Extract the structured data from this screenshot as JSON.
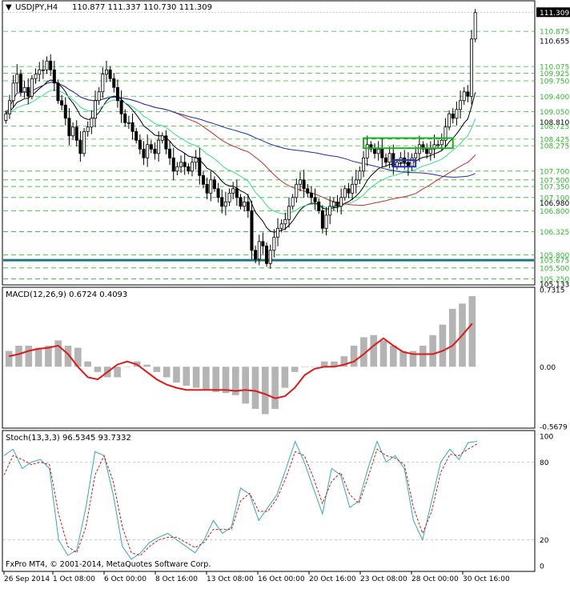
{
  "header": {
    "symbol": "USDJPY,H4",
    "ohlc": "110.877 111.337 110.730 111.309"
  },
  "copyright": "FxPro MT4, © 2001-2014, MetaQuotes Software Corp.",
  "colors": {
    "bull": "#000000",
    "ma_fast": "#000000",
    "ma_green": "#3cdc8c",
    "ma_red": "#c03030",
    "ma_blue": "#2030a0",
    "level_dashed": "#2db82d",
    "support": "#1a7a80",
    "resistance_box": "#22b022",
    "small_box": "#2030c0",
    "macd_hist": "#b4b4b4",
    "macd_signal": "#e01818",
    "stoch_main": "#3aa8b0",
    "stoch_signal": "#d01818"
  },
  "chart_data": [
    {
      "type": "candlestick",
      "name": "USDJPY,H4",
      "ylim": [
        105.133,
        111.55
      ],
      "x_labels": [
        "26 Sep 2014",
        "1 Oct 08:00",
        "6 Oct 00:00",
        "8 Oct 16:00",
        "13 Oct 08:00",
        "16 Oct 00:00",
        "20 Oct 16:00",
        "23 Oct 08:00",
        "28 Oct 00:00",
        "30 Oct 16:00"
      ],
      "price_axis_labels": [
        "111.309",
        "110.875",
        "110.655",
        "110.075",
        "109.925",
        "109.750",
        "109.400",
        "109.050",
        "108.810",
        "108.725",
        "108.425",
        "108.275",
        "107.700",
        "107.500",
        "107.350",
        "107.100",
        "106.980",
        "106.800",
        "106.325",
        "105.800",
        "105.675",
        "105.500",
        "105.250",
        "105.133"
      ],
      "dashed_levels": [
        110.875,
        110.075,
        109.925,
        109.75,
        109.4,
        109.05,
        108.725,
        108.425,
        108.275,
        107.7,
        107.5,
        107.35,
        107.1,
        106.8,
        106.325,
        105.8,
        105.5,
        105.25
      ],
      "support_level": 105.675,
      "current_price": 111.309,
      "close": [
        109.0,
        109.3,
        109.7,
        109.9,
        109.5,
        109.6,
        109.4,
        109.8,
        109.9,
        110.0,
        110.0,
        110.2,
        110.0,
        109.7,
        109.3,
        109.2,
        108.9,
        108.5,
        108.7,
        108.4,
        108.1,
        108.6,
        108.7,
        108.9,
        109.3,
        109.5,
        109.9,
        110.0,
        109.8,
        109.6,
        109.3,
        109.0,
        108.8,
        108.8,
        108.6,
        108.4,
        108.2,
        108.0,
        108.3,
        108.2,
        108.1,
        108.4,
        108.5,
        108.2,
        108.0,
        107.7,
        107.8,
        107.9,
        107.8,
        107.7,
        107.9,
        108.0,
        107.6,
        107.4,
        107.2,
        107.5,
        107.3,
        107.1,
        106.9,
        107.0,
        107.2,
        107.3,
        107.1,
        106.9,
        107.0,
        106.8,
        105.9,
        105.7,
        106.1,
        106.0,
        105.6,
        105.9,
        106.2,
        106.4,
        106.5,
        106.6,
        106.9,
        107.1,
        107.4,
        107.5,
        107.3,
        107.2,
        107.1,
        107.0,
        106.8,
        106.4,
        106.7,
        106.9,
        107.0,
        106.9,
        107.1,
        107.3,
        107.2,
        107.4,
        107.5,
        107.7,
        108.0,
        108.3,
        108.2,
        108.1,
        108.2,
        108.0,
        107.9,
        108.1,
        107.8,
        107.9,
        108.0,
        107.9,
        107.8,
        108.0,
        108.1,
        108.3,
        108.2,
        108.1,
        108.2,
        108.3,
        108.3,
        108.4,
        108.7,
        109.0,
        108.9,
        109.1,
        109.3,
        109.5,
        109.4,
        110.7,
        111.3
      ]
    },
    {
      "type": "bar",
      "name": "MACD(12,26,9)",
      "header": "MACD(12,26,9) 0.6724 0.4093",
      "axis_labels": [
        "0.7315",
        "0.00",
        "-0.5679"
      ],
      "ylim": [
        -0.5679,
        0.7315
      ],
      "main": [
        0.15,
        0.2,
        0.2,
        0.18,
        0.2,
        0.25,
        0.2,
        0.18,
        0.05,
        -0.05,
        -0.1,
        -0.1,
        0.0,
        0.05,
        0.02,
        -0.05,
        -0.1,
        -0.15,
        -0.18,
        -0.2,
        -0.22,
        -0.24,
        -0.25,
        -0.27,
        -0.35,
        -0.4,
        -0.45,
        -0.4,
        -0.2,
        -0.05,
        0.0,
        0.0,
        0.05,
        0.05,
        0.1,
        0.2,
        0.28,
        0.3,
        0.25,
        0.2,
        0.15,
        0.15,
        0.2,
        0.3,
        0.4,
        0.55,
        0.6,
        0.67
      ],
      "signal": [
        0.1,
        0.12,
        0.15,
        0.17,
        0.18,
        0.2,
        0.12,
        0.0,
        -0.1,
        -0.12,
        -0.05,
        0.02,
        0.05,
        0.02,
        -0.05,
        -0.12,
        -0.17,
        -0.2,
        -0.22,
        -0.22,
        -0.22,
        -0.22,
        -0.22,
        -0.23,
        -0.22,
        -0.23,
        -0.26,
        -0.3,
        -0.28,
        -0.2,
        -0.08,
        -0.02,
        0.0,
        0.0,
        0.02,
        0.05,
        0.12,
        0.2,
        0.27,
        0.2,
        0.14,
        0.12,
        0.12,
        0.12,
        0.15,
        0.2,
        0.3,
        0.41
      ]
    },
    {
      "type": "line",
      "name": "Stoch(13,3,3)",
      "header": "Stoch(13,3,3) 96.5345 93.7332",
      "axis_labels": [
        "100",
        "80",
        "20",
        "0"
      ],
      "ylim": [
        0,
        100
      ],
      "main": [
        85,
        90,
        75,
        80,
        82,
        75,
        20,
        8,
        12,
        45,
        88,
        85,
        55,
        15,
        5,
        10,
        18,
        22,
        25,
        20,
        15,
        10,
        20,
        35,
        25,
        30,
        60,
        55,
        35,
        45,
        55,
        75,
        96,
        80,
        60,
        40,
        75,
        70,
        45,
        50,
        75,
        96,
        80,
        85,
        75,
        35,
        20,
        50,
        80,
        90,
        82,
        95,
        96
      ],
      "signal": [
        70,
        85,
        82,
        78,
        80,
        78,
        40,
        15,
        10,
        30,
        70,
        85,
        65,
        30,
        10,
        8,
        15,
        20,
        22,
        22,
        18,
        14,
        18,
        28,
        28,
        28,
        50,
        56,
        42,
        42,
        52,
        68,
        88,
        85,
        68,
        48,
        65,
        72,
        55,
        48,
        68,
        90,
        85,
        83,
        78,
        45,
        25,
        42,
        72,
        86,
        85,
        90,
        94
      ]
    }
  ]
}
